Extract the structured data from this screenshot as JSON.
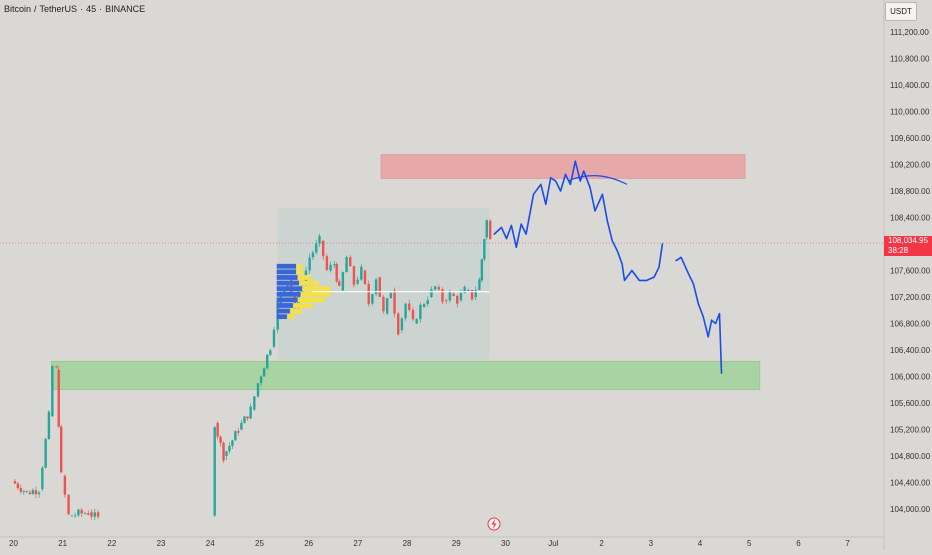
{
  "header": {
    "symbol": "Bitcoin",
    "pair": "TetherUS",
    "interval": "45",
    "exchange": "BINANCE",
    "currency": "USDT"
  },
  "last_price": {
    "value": "108,034.95",
    "countdown": "38:28",
    "color": "#f23645"
  },
  "colors": {
    "up": "#26a69a",
    "down": "#ef5350",
    "drawing": "#1a4de6",
    "resistance_zone": "#e8a5a7",
    "support_zone": "#a6d3a0",
    "range_box": "#c9d4d0",
    "profile_blue": "#3a66d6",
    "profile_yellow": "#f5e04a"
  },
  "icons": {
    "events_marker": "flash-icon"
  },
  "chart_data": {
    "type": "candlestick",
    "x_ticks": [
      "20",
      "21",
      "22",
      "23",
      "24",
      "25",
      "26",
      "27",
      "28",
      "29",
      "30",
      "Jul",
      "2",
      "3",
      "4",
      "5",
      "6",
      "7"
    ],
    "y_ticks": [
      "111,200.00",
      "110,800.00",
      "110,400.00",
      "110,000.00",
      "109,600.00",
      "109,200.00",
      "108,800.00",
      "108,400.00",
      "108,000.00",
      "107,600.00",
      "107,200.00",
      "106,800.00",
      "106,400.00",
      "106,000.00",
      "105,600.00",
      "105,200.00",
      "104,800.00",
      "104,400.00",
      "104,000.00"
    ],
    "ylim": [
      103800,
      111400
    ],
    "xlim": [
      20,
      38
    ],
    "zones": [
      {
        "name": "resistance",
        "x": [
          27.5,
          34.9
        ],
        "y": [
          108990,
          109350
        ]
      },
      {
        "name": "support",
        "x": [
          20.8,
          35.2
        ],
        "y": [
          105800,
          106230
        ]
      },
      {
        "name": "range",
        "x": [
          25.4,
          29.7
        ],
        "y": [
          106260,
          108530
        ]
      }
    ],
    "poc_line": {
      "x": [
        26.1,
        29.7
      ],
      "y": 107280
    },
    "close_series": [
      [
        20.0,
        104420
      ],
      [
        20.3,
        104250
      ],
      [
        20.55,
        104300
      ],
      [
        20.75,
        105400
      ],
      [
        20.82,
        106150
      ],
      [
        20.9,
        106100
      ],
      [
        21.0,
        104500
      ],
      [
        21.15,
        103900
      ],
      [
        21.55,
        103950
      ],
      [
        21.75,
        103850
      ],
      [
        24.05,
        103900
      ],
      [
        24.12,
        105300
      ],
      [
        24.3,
        104800
      ],
      [
        24.6,
        105200
      ],
      [
        24.85,
        105500
      ],
      [
        25.0,
        105900
      ],
      [
        25.25,
        106450
      ],
      [
        25.4,
        107100
      ],
      [
        25.6,
        107500
      ],
      [
        25.75,
        107050
      ],
      [
        25.9,
        107400
      ],
      [
        26.05,
        107800
      ],
      [
        26.25,
        108050
      ],
      [
        26.4,
        107600
      ],
      [
        26.55,
        107700
      ],
      [
        26.65,
        107300
      ],
      [
        26.8,
        107800
      ],
      [
        26.95,
        107400
      ],
      [
        27.1,
        107600
      ],
      [
        27.25,
        107100
      ],
      [
        27.4,
        107500
      ],
      [
        27.55,
        106950
      ],
      [
        27.7,
        107300
      ],
      [
        27.85,
        106700
      ],
      [
        28.0,
        107100
      ],
      [
        28.15,
        106800
      ],
      [
        28.3,
        107050
      ],
      [
        28.45,
        107200
      ],
      [
        28.6,
        107350
      ],
      [
        28.75,
        107150
      ],
      [
        28.9,
        107250
      ],
      [
        29.05,
        107150
      ],
      [
        29.2,
        107300
      ],
      [
        29.35,
        107200
      ],
      [
        29.5,
        107450
      ],
      [
        29.6,
        108100
      ],
      [
        29.65,
        108350
      ],
      [
        29.72,
        108050
      ]
    ],
    "profile": {
      "blue": [
        65,
        65,
        70,
        75,
        85,
        80,
        70,
        55,
        45,
        35
      ],
      "yellow": [
        20,
        25,
        45,
        65,
        95,
        100,
        90,
        65,
        40,
        25
      ]
    },
    "forecast_path": [
      [
        29.8,
        108150
      ],
      [
        29.95,
        108250
      ],
      [
        30.05,
        108080
      ],
      [
        30.15,
        108280
      ],
      [
        30.25,
        107950
      ],
      [
        30.35,
        108300
      ],
      [
        30.45,
        108150
      ],
      [
        30.6,
        108750
      ],
      [
        30.75,
        108900
      ],
      [
        30.85,
        108600
      ],
      [
        30.95,
        109000
      ],
      [
        31.05,
        108950
      ],
      [
        31.15,
        108800
      ],
      [
        31.25,
        109050
      ],
      [
        31.35,
        108900
      ],
      [
        31.45,
        109250
      ],
      [
        31.55,
        108950
      ],
      [
        31.62,
        109100
      ],
      [
        31.75,
        108850
      ],
      [
        31.85,
        108500
      ],
      [
        32.0,
        108750
      ],
      [
        32.1,
        108350
      ],
      [
        32.2,
        108050
      ],
      [
        32.3,
        107900
      ],
      [
        32.4,
        107700
      ],
      [
        32.45,
        107450
      ],
      [
        32.6,
        107600
      ],
      [
        32.75,
        107450
      ],
      [
        32.9,
        107450
      ],
      [
        33.05,
        107500
      ],
      [
        33.15,
        107650
      ],
      [
        33.22,
        108000
      ],
      null,
      [
        33.5,
        107750
      ],
      [
        33.6,
        107800
      ],
      [
        33.75,
        107550
      ],
      [
        33.85,
        107400
      ],
      [
        33.95,
        107100
      ],
      [
        34.05,
        106900
      ],
      [
        34.15,
        106600
      ],
      [
        34.22,
        106850
      ],
      [
        34.3,
        106800
      ],
      [
        34.38,
        106950
      ],
      [
        34.42,
        106050
      ]
    ],
    "arc": [
      [
        31.3,
        108950
      ],
      [
        31.7,
        109080
      ],
      [
        32.1,
        109050
      ],
      [
        32.5,
        108900
      ]
    ]
  }
}
